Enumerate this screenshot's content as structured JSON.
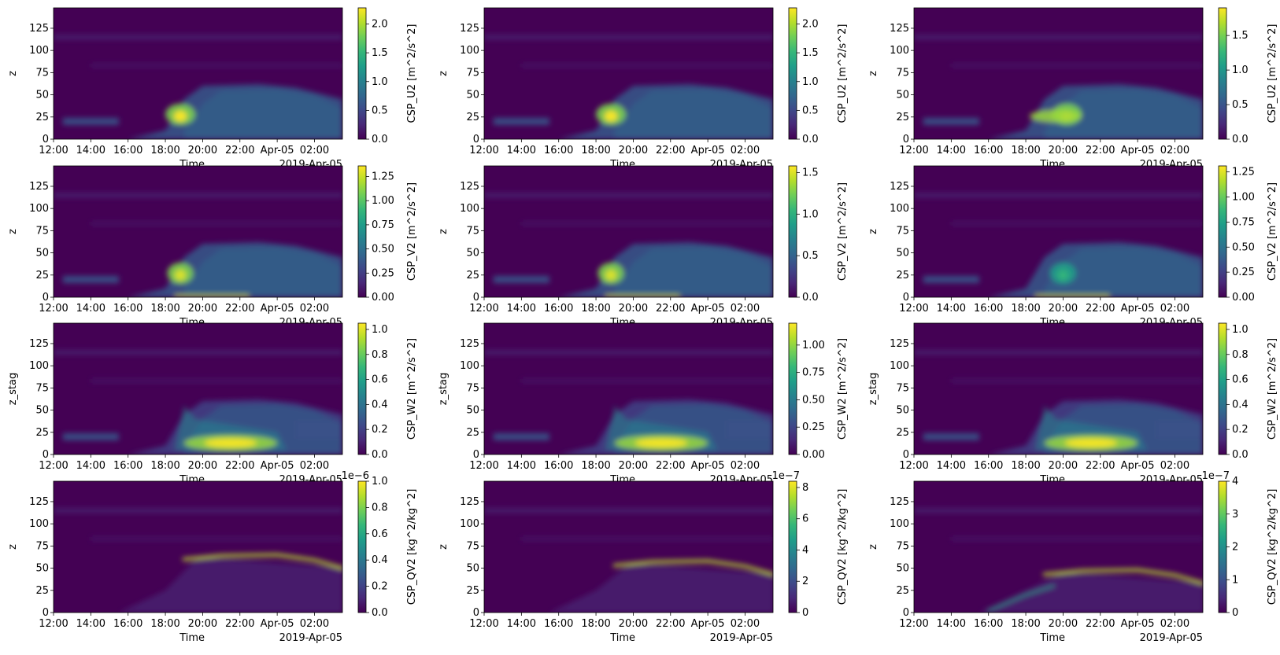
{
  "figure": {
    "colormap": "viridis",
    "colors": {
      "viridis": [
        "#440154",
        "#482878",
        "#3e4989",
        "#31688e",
        "#26828e",
        "#1f9e89",
        "#35b779",
        "#6ece58",
        "#b5de2b",
        "#fde725"
      ],
      "background": "#ffffff",
      "text": "#000000"
    }
  },
  "chart_data": [
    {
      "type": "heatmap",
      "ylabel": "z",
      "xlabel": "Time",
      "x_offset_label": "2019-Apr-05",
      "colorbar_label": "CSP_U2 [m^2/s^2]",
      "colorbar_ticks": [
        "0.0",
        "0.5",
        "1.0",
        "1.5",
        "2.0"
      ],
      "colorbar_tick_values": [
        0,
        0.5,
        1.0,
        1.5,
        2.0
      ],
      "colorbar_range": [
        0,
        2.28
      ],
      "colorbar_offset": "",
      "xticks": [
        "12:00",
        "14:00",
        "16:00",
        "18:00",
        "20:00",
        "22:00",
        "Apr-05",
        "02:00"
      ],
      "xlim": [
        "2019-04-04 12:00",
        "2019-04-05 03:30"
      ],
      "yticks": [
        0,
        25,
        50,
        75,
        100,
        125
      ],
      "ylim": [
        0,
        148
      ]
    },
    {
      "type": "heatmap",
      "ylabel": "z",
      "xlabel": "Time",
      "x_offset_label": "2019-Apr-05",
      "colorbar_label": "CSP_U2 [m^2/s^2]",
      "colorbar_ticks": [
        "0.0",
        "0.5",
        "1.0",
        "1.5",
        "2.0"
      ],
      "colorbar_tick_values": [
        0,
        0.5,
        1.0,
        1.5,
        2.0
      ],
      "colorbar_range": [
        0,
        2.28
      ],
      "colorbar_offset": "",
      "xticks": [
        "12:00",
        "14:00",
        "16:00",
        "18:00",
        "20:00",
        "22:00",
        "Apr-05",
        "02:00"
      ],
      "xlim": [
        "2019-04-04 12:00",
        "2019-04-05 03:30"
      ],
      "yticks": [
        0,
        25,
        50,
        75,
        100,
        125
      ],
      "ylim": [
        0,
        148
      ]
    },
    {
      "type": "heatmap",
      "ylabel": "z",
      "xlabel": "Time",
      "x_offset_label": "2019-Apr-05",
      "colorbar_label": "CSP_U2 [m^2/s^2]",
      "colorbar_ticks": [
        "0.0",
        "0.5",
        "1.0",
        "1.5"
      ],
      "colorbar_tick_values": [
        0,
        0.5,
        1.0,
        1.5
      ],
      "colorbar_range": [
        0,
        1.9
      ],
      "colorbar_offset": "",
      "xticks": [
        "12:00",
        "14:00",
        "16:00",
        "18:00",
        "20:00",
        "22:00",
        "Apr-05",
        "02:00"
      ],
      "xlim": [
        "2019-04-04 12:00",
        "2019-04-05 03:30"
      ],
      "yticks": [
        0,
        25,
        50,
        75,
        100,
        125
      ],
      "ylim": [
        0,
        148
      ]
    },
    {
      "type": "heatmap",
      "ylabel": "z",
      "xlabel": "Time",
      "x_offset_label": "2019-Apr-05",
      "colorbar_label": "CSP_V2 [m^2/s^2]",
      "colorbar_ticks": [
        "0.00",
        "0.25",
        "0.50",
        "0.75",
        "1.00",
        "1.25"
      ],
      "colorbar_tick_values": [
        0,
        0.25,
        0.5,
        0.75,
        1.0,
        1.25
      ],
      "colorbar_range": [
        0,
        1.36
      ],
      "colorbar_offset": "",
      "xticks": [
        "12:00",
        "14:00",
        "16:00",
        "18:00",
        "20:00",
        "22:00",
        "Apr-05",
        "02:00"
      ],
      "xlim": [
        "2019-04-04 12:00",
        "2019-04-05 03:30"
      ],
      "yticks": [
        0,
        25,
        50,
        75,
        100,
        125
      ],
      "ylim": [
        0,
        148
      ]
    },
    {
      "type": "heatmap",
      "ylabel": "z",
      "xlabel": "Time",
      "x_offset_label": "2019-Apr-05",
      "colorbar_label": "CSP_V2 [m^2/s^2]",
      "colorbar_ticks": [
        "0.0",
        "0.5",
        "1.0",
        "1.5"
      ],
      "colorbar_tick_values": [
        0,
        0.5,
        1.0,
        1.5
      ],
      "colorbar_range": [
        0,
        1.58
      ],
      "colorbar_offset": "",
      "xticks": [
        "12:00",
        "14:00",
        "16:00",
        "18:00",
        "20:00",
        "22:00",
        "Apr-05",
        "02:00"
      ],
      "xlim": [
        "2019-04-04 12:00",
        "2019-04-05 03:30"
      ],
      "yticks": [
        0,
        25,
        50,
        75,
        100,
        125
      ],
      "ylim": [
        0,
        148
      ]
    },
    {
      "type": "heatmap",
      "ylabel": "z",
      "xlabel": "Time",
      "x_offset_label": "2019-Apr-05",
      "colorbar_label": "CSP_V2 [m^2/s^2]",
      "colorbar_ticks": [
        "0.00",
        "0.25",
        "0.50",
        "0.75",
        "1.00",
        "1.25"
      ],
      "colorbar_tick_values": [
        0,
        0.25,
        0.5,
        0.75,
        1.0,
        1.25
      ],
      "colorbar_range": [
        0,
        1.31
      ],
      "colorbar_offset": "",
      "xticks": [
        "12:00",
        "14:00",
        "16:00",
        "18:00",
        "20:00",
        "22:00",
        "Apr-05",
        "02:00"
      ],
      "xlim": [
        "2019-04-04 12:00",
        "2019-04-05 03:30"
      ],
      "yticks": [
        0,
        25,
        50,
        75,
        100,
        125
      ],
      "ylim": [
        0,
        148
      ]
    },
    {
      "type": "heatmap",
      "ylabel": "z_stag",
      "xlabel": "Time",
      "x_offset_label": "2019-Apr-05",
      "colorbar_label": "CSP_W2 [m^2/s^2]",
      "colorbar_ticks": [
        "0.0",
        "0.2",
        "0.4",
        "0.6",
        "0.8",
        "1.0"
      ],
      "colorbar_tick_values": [
        0,
        0.2,
        0.4,
        0.6,
        0.8,
        1.0
      ],
      "colorbar_range": [
        0,
        1.05
      ],
      "colorbar_offset": "",
      "xticks": [
        "12:00",
        "14:00",
        "16:00",
        "18:00",
        "20:00",
        "22:00",
        "Apr-05",
        "02:00"
      ],
      "xlim": [
        "2019-04-04 12:00",
        "2019-04-05 03:30"
      ],
      "yticks": [
        0,
        25,
        50,
        75,
        100,
        125
      ],
      "ylim": [
        0,
        148
      ]
    },
    {
      "type": "heatmap",
      "ylabel": "z_stag",
      "xlabel": "Time",
      "x_offset_label": "2019-Apr-05",
      "colorbar_label": "CSP_W2 [m^2/s^2]",
      "colorbar_ticks": [
        "0.00",
        "0.25",
        "0.50",
        "0.75",
        "1.00"
      ],
      "colorbar_tick_values": [
        0,
        0.25,
        0.5,
        0.75,
        1.0
      ],
      "colorbar_range": [
        0,
        1.2
      ],
      "colorbar_offset": "",
      "xticks": [
        "12:00",
        "14:00",
        "16:00",
        "18:00",
        "20:00",
        "22:00",
        "Apr-05",
        "02:00"
      ],
      "xlim": [
        "2019-04-04 12:00",
        "2019-04-05 03:30"
      ],
      "yticks": [
        0,
        25,
        50,
        75,
        100,
        125
      ],
      "ylim": [
        0,
        148
      ]
    },
    {
      "type": "heatmap",
      "ylabel": "z_stag",
      "xlabel": "Time",
      "x_offset_label": "2019-Apr-05",
      "colorbar_label": "CSP_W2 [m^2/s^2]",
      "colorbar_ticks": [
        "0.0",
        "0.2",
        "0.4",
        "0.6",
        "0.8",
        "1.0"
      ],
      "colorbar_tick_values": [
        0,
        0.2,
        0.4,
        0.6,
        0.8,
        1.0
      ],
      "colorbar_range": [
        0,
        1.05
      ],
      "colorbar_offset": "",
      "xticks": [
        "12:00",
        "14:00",
        "16:00",
        "18:00",
        "20:00",
        "22:00",
        "Apr-05",
        "02:00"
      ],
      "xlim": [
        "2019-04-04 12:00",
        "2019-04-05 03:30"
      ],
      "yticks": [
        0,
        25,
        50,
        75,
        100,
        125
      ],
      "ylim": [
        0,
        148
      ]
    },
    {
      "type": "heatmap",
      "ylabel": "z",
      "xlabel": "Time",
      "x_offset_label": "2019-Apr-05",
      "colorbar_label": "CSP_QV2 [kg^2/kg^2]",
      "colorbar_ticks": [
        "0.0",
        "0.2",
        "0.4",
        "0.6",
        "0.8",
        "1.0"
      ],
      "colorbar_tick_values": [
        0,
        0.2,
        0.4,
        0.6,
        0.8,
        1.0
      ],
      "colorbar_range": [
        0,
        1.0
      ],
      "colorbar_offset": "1e−6",
      "xticks": [
        "12:00",
        "14:00",
        "16:00",
        "18:00",
        "20:00",
        "22:00",
        "Apr-05",
        "02:00"
      ],
      "xlim": [
        "2019-04-04 12:00",
        "2019-04-05 03:30"
      ],
      "yticks": [
        0,
        25,
        50,
        75,
        100,
        125
      ],
      "ylim": [
        0,
        148
      ]
    },
    {
      "type": "heatmap",
      "ylabel": "z",
      "xlabel": "Time",
      "x_offset_label": "2019-Apr-05",
      "colorbar_label": "CSP_QV2 [kg^2/kg^2]",
      "colorbar_ticks": [
        "0",
        "2",
        "4",
        "6",
        "8"
      ],
      "colorbar_tick_values": [
        0,
        2,
        4,
        6,
        8
      ],
      "colorbar_range": [
        0,
        8.4
      ],
      "colorbar_offset": "1e−7",
      "xticks": [
        "12:00",
        "14:00",
        "16:00",
        "18:00",
        "20:00",
        "22:00",
        "Apr-05",
        "02:00"
      ],
      "xlim": [
        "2019-04-04 12:00",
        "2019-04-05 03:30"
      ],
      "yticks": [
        0,
        25,
        50,
        75,
        100,
        125
      ],
      "ylim": [
        0,
        148
      ]
    },
    {
      "type": "heatmap",
      "ylabel": "z",
      "xlabel": "Time",
      "x_offset_label": "2019-Apr-05",
      "colorbar_label": "CSP_QV2 [kg^2/kg^2]",
      "colorbar_ticks": [
        "0",
        "1",
        "2",
        "3",
        "4"
      ],
      "colorbar_tick_values": [
        0,
        1,
        2,
        3,
        4
      ],
      "colorbar_range": [
        0,
        4.0
      ],
      "colorbar_offset": "1e−7",
      "xticks": [
        "12:00",
        "14:00",
        "16:00",
        "18:00",
        "20:00",
        "22:00",
        "Apr-05",
        "02:00"
      ],
      "xlim": [
        "2019-04-04 12:00",
        "2019-04-05 03:30"
      ],
      "yticks": [
        0,
        25,
        50,
        75,
        100,
        125
      ],
      "ylim": [
        0,
        148
      ]
    }
  ]
}
